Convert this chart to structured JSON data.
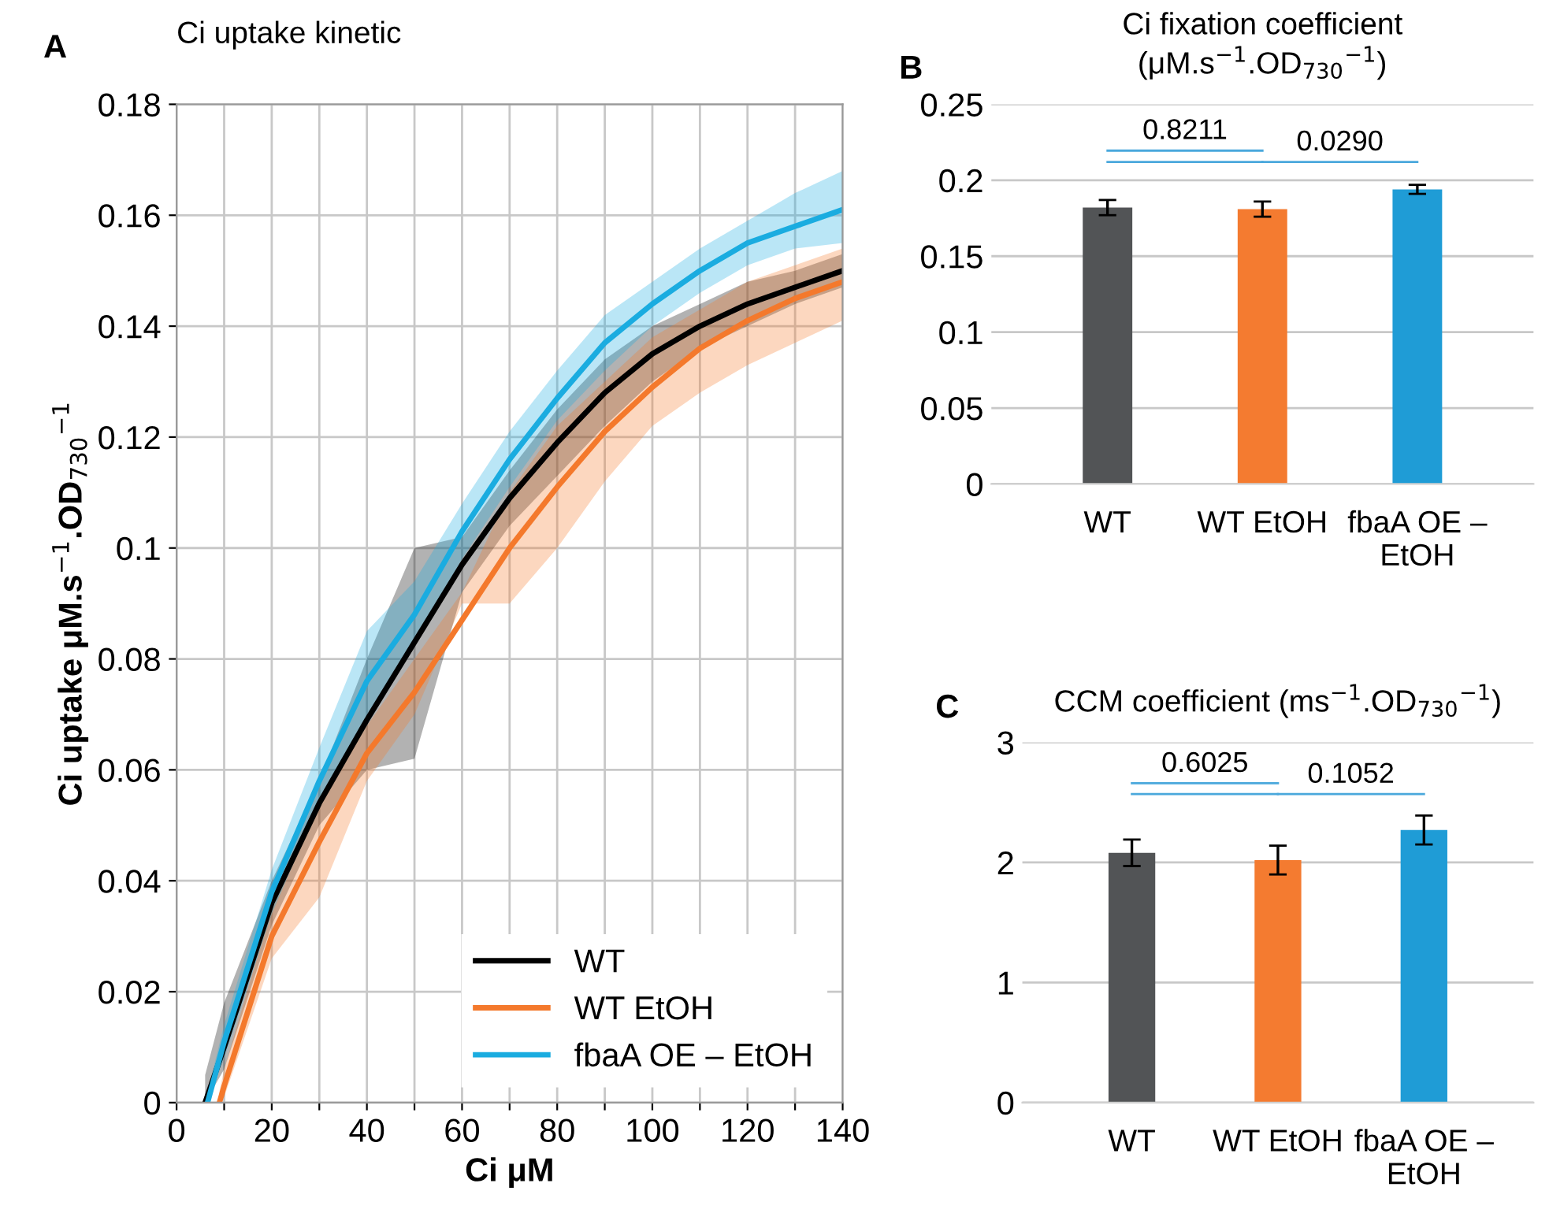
{
  "chart_data": [
    {
      "type": "line",
      "title": "Ci uptake kinetic",
      "xlabel": "Ci μM",
      "ylabel": "Ci uptake μM.s$^{−1}$.OD$_{730}$$^{−1}$",
      "annotations": [
        "A"
      ],
      "xlim": [
        0,
        140
      ],
      "xticks": [
        0,
        {
          "value": 10,
          "label": null
        },
        20,
        {
          "value": 30,
          "label": null
        },
        40,
        {
          "value": 50,
          "label": null
        },
        60,
        {
          "value": 70,
          "label": null
        },
        80,
        {
          "value": 90,
          "label": null
        },
        100,
        {
          "value": 110,
          "label": null
        },
        120,
        {
          "value": 130,
          "label": null
        },
        140
      ],
      "ylim": [
        0,
        0.18
      ],
      "yticks": [
        0,
        0.02,
        0.04,
        0.06,
        0.08,
        0.1,
        0.12,
        0.14,
        0.16,
        0.18
      ],
      "grid": true,
      "legend": "bottom right",
      "marker": "none",
      "line_style": "solid",
      "series": [
        {
          "name": "WT",
          "color": "#000000",
          "x": [
            6,
            10,
            20,
            30,
            40,
            50,
            60,
            70,
            80,
            90,
            100,
            110,
            120,
            130,
            140
          ],
          "values": [
            0,
            0.01,
            0.036,
            0.054,
            0.069,
            0.083,
            0.097,
            0.109,
            0.119,
            0.128,
            0.135,
            0.14,
            0.144,
            0.147,
            0.15
          ],
          "lower": [
            0,
            0.006,
            0.032,
            0.05,
            0.06,
            0.062,
            0.092,
            0.104,
            0.113,
            0.122,
            0.13,
            0.136,
            0.14,
            0.144,
            0.147
          ],
          "upper": [
            0.005,
            0.018,
            0.04,
            0.058,
            0.08,
            0.1,
            0.102,
            0.114,
            0.125,
            0.134,
            0.14,
            0.144,
            0.148,
            0.15,
            0.153
          ]
        },
        {
          "name": "WT EtOH",
          "color": "#f4792c",
          "x": [
            9,
            10,
            20,
            30,
            40,
            50,
            60,
            70,
            80,
            90,
            100,
            110,
            120,
            130,
            140
          ],
          "values": [
            0,
            0.003,
            0.03,
            0.047,
            0.063,
            0.074,
            0.087,
            0.1,
            0.111,
            0.121,
            0.129,
            0.136,
            0.141,
            0.145,
            0.148
          ],
          "lower": [
            0,
            0.001,
            0.026,
            0.037,
            0.058,
            0.07,
            0.09,
            0.09,
            0.1,
            0.112,
            0.122,
            0.128,
            0.133,
            0.137,
            0.141
          ],
          "upper": [
            0.002,
            0.006,
            0.035,
            0.055,
            0.068,
            0.08,
            0.092,
            0.11,
            0.122,
            0.13,
            0.138,
            0.143,
            0.148,
            0.151,
            0.154
          ]
        },
        {
          "name": "fbaA OE – EtOH",
          "color": "#1aace0",
          "x": [
            6.5,
            10,
            20,
            30,
            40,
            50,
            60,
            70,
            80,
            90,
            100,
            110,
            120,
            130,
            140
          ],
          "values": [
            0,
            0.011,
            0.038,
            0.058,
            0.076,
            0.088,
            0.103,
            0.116,
            0.127,
            0.137,
            0.144,
            0.15,
            0.155,
            0.158,
            0.161
          ],
          "lower": [
            0,
            0.008,
            0.034,
            0.054,
            0.068,
            0.083,
            0.098,
            0.111,
            0.123,
            0.132,
            0.14,
            0.146,
            0.151,
            0.154,
            0.155
          ],
          "upper": [
            0.002,
            0.014,
            0.042,
            0.064,
            0.085,
            0.094,
            0.108,
            0.121,
            0.132,
            0.142,
            0.148,
            0.154,
            0.159,
            0.164,
            0.168
          ]
        }
      ]
    },
    {
      "type": "bar",
      "title": "Ci fixation coefficient\n(μM.s$^{−1}$.OD$_{730}$$^{−1}$)",
      "annotations": [
        "B",
        "0.8211",
        "0.0290"
      ],
      "categories": [
        "WT",
        "WT EtOH",
        "fbaA OE – EtOH"
      ],
      "values": [
        0.182,
        0.181,
        0.194
      ],
      "errors": [
        0.005,
        0.005,
        0.003
      ],
      "colors": [
        "#525456",
        "#f47b30",
        "#1f9cd6"
      ],
      "ylim": [
        0,
        0.25
      ],
      "yticks": [
        0,
        0.05,
        0.1,
        0.15,
        0.2,
        0.25
      ],
      "grid": "y"
    },
    {
      "type": "bar",
      "title": "CCM coefficient (ms$^{−1}$.OD$_{730}$$^{−1}$)",
      "annotations": [
        "C",
        "0.6025",
        "0.1052"
      ],
      "categories": [
        "WT",
        "WT EtOH",
        "fbaA OE – EtOH"
      ],
      "values": [
        2.08,
        2.02,
        2.27
      ],
      "errors": [
        0.11,
        0.12,
        0.12
      ],
      "colors": [
        "#525456",
        "#f47b30",
        "#1f9cd6"
      ],
      "ylim": [
        0,
        3
      ],
      "yticks": [
        0,
        1,
        2,
        3
      ],
      "grid": "y"
    }
  ]
}
